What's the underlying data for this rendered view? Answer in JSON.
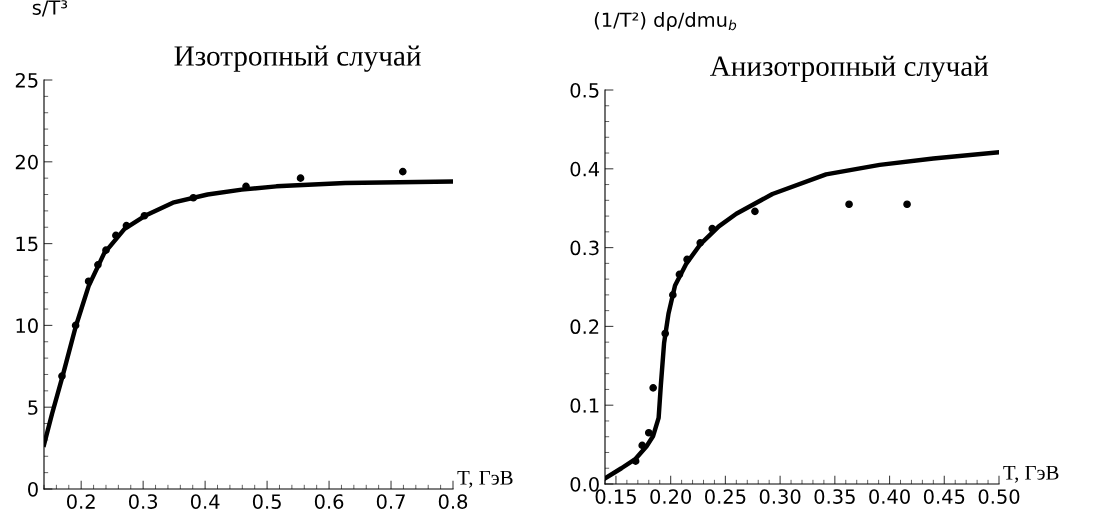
{
  "chart_data": [
    {
      "type": "line",
      "title": "Изотропный случай",
      "ylabel": "s/T³",
      "xlabel": "T, ГэВ",
      "xlim": [
        0.14,
        0.8
      ],
      "ylim": [
        0,
        25
      ],
      "xticks": [
        {
          "value": 0.2,
          "label": "0.2"
        },
        {
          "value": 0.3,
          "label": "0.3"
        },
        {
          "value": 0.4,
          "label": "0.4"
        },
        {
          "value": 0.5,
          "label": "0.5"
        },
        {
          "value": 0.6,
          "label": "0.6"
        },
        {
          "value": 0.7,
          "label": "0.7"
        },
        {
          "value": 0.8,
          "label": "0.8"
        }
      ],
      "yticks": [
        0,
        5,
        10,
        15,
        20,
        25
      ],
      "series": [
        {
          "color": "#000000",
          "x": [
            0.14,
            0.153,
            0.17,
            0.191,
            0.212,
            0.237,
            0.27,
            0.303,
            0.348,
            0.404,
            0.459,
            0.515,
            0.626,
            0.8
          ],
          "values": [
            2.7,
            4.6,
            6.9,
            9.9,
            12.4,
            14.4,
            15.9,
            16.7,
            17.5,
            18.0,
            18.3,
            18.5,
            18.7,
            18.8
          ]
        },
        {
          "type": "scatter",
          "color": "#000000",
          "marker": "circle",
          "x": [
            0.169,
            0.191,
            0.212,
            0.227,
            0.24,
            0.256,
            0.273,
            0.302,
            0.381,
            0.466,
            0.554,
            0.719
          ],
          "values": [
            6.9,
            10.0,
            12.7,
            13.7,
            14.6,
            15.5,
            16.1,
            16.7,
            17.8,
            18.5,
            19.0,
            19.4
          ]
        }
      ]
    },
    {
      "type": "line",
      "title": "Анизотропный случай",
      "ylabel": "(1/T²) dρ/dmu$_{b}$",
      "xlabel": "T, ГэВ",
      "xlim": [
        0.14,
        0.5
      ],
      "ylim": [
        0,
        0.5
      ],
      "xticks": [
        {
          "value": 0.15,
          "label": "0.15"
        },
        {
          "value": 0.2,
          "label": "0.20"
        },
        {
          "value": 0.25,
          "label": "0.25"
        },
        {
          "value": 0.3,
          "label": "0.30"
        },
        {
          "value": 0.35,
          "label": "0.35"
        },
        {
          "value": 0.4,
          "label": "0.40"
        },
        {
          "value": 0.45,
          "label": "0.45"
        },
        {
          "value": 0.5,
          "label": "0.50"
        }
      ],
      "yticks": [
        {
          "value": 0,
          "label": "0.0"
        },
        {
          "value": 0.1,
          "label": "0.1"
        },
        {
          "value": 0.2,
          "label": "0.2"
        },
        {
          "value": 0.3,
          "label": "0.3"
        },
        {
          "value": 0.4,
          "label": "0.4"
        },
        {
          "value": 0.5,
          "label": "0.5"
        }
      ],
      "series": [
        {
          "color": "#000000",
          "x": [
            0.14,
            0.155,
            0.168,
            0.178,
            0.184,
            0.189,
            0.191,
            0.194,
            0.198,
            0.204,
            0.214,
            0.227,
            0.244,
            0.26,
            0.293,
            0.342,
            0.391,
            0.44,
            0.5
          ],
          "values": [
            0.007,
            0.02,
            0.032,
            0.048,
            0.061,
            0.084,
            0.125,
            0.179,
            0.216,
            0.252,
            0.279,
            0.304,
            0.327,
            0.343,
            0.368,
            0.393,
            0.405,
            0.413,
            0.421
          ]
        },
        {
          "type": "scatter",
          "color": "#000000",
          "marker": "circle",
          "x": [
            0.168,
            0.174,
            0.18,
            0.184,
            0.195,
            0.202,
            0.208,
            0.215,
            0.227,
            0.238,
            0.277,
            0.363,
            0.416
          ],
          "values": [
            0.029,
            0.049,
            0.065,
            0.122,
            0.191,
            0.24,
            0.266,
            0.285,
            0.306,
            0.324,
            0.346,
            0.355,
            0.355
          ]
        }
      ]
    }
  ]
}
